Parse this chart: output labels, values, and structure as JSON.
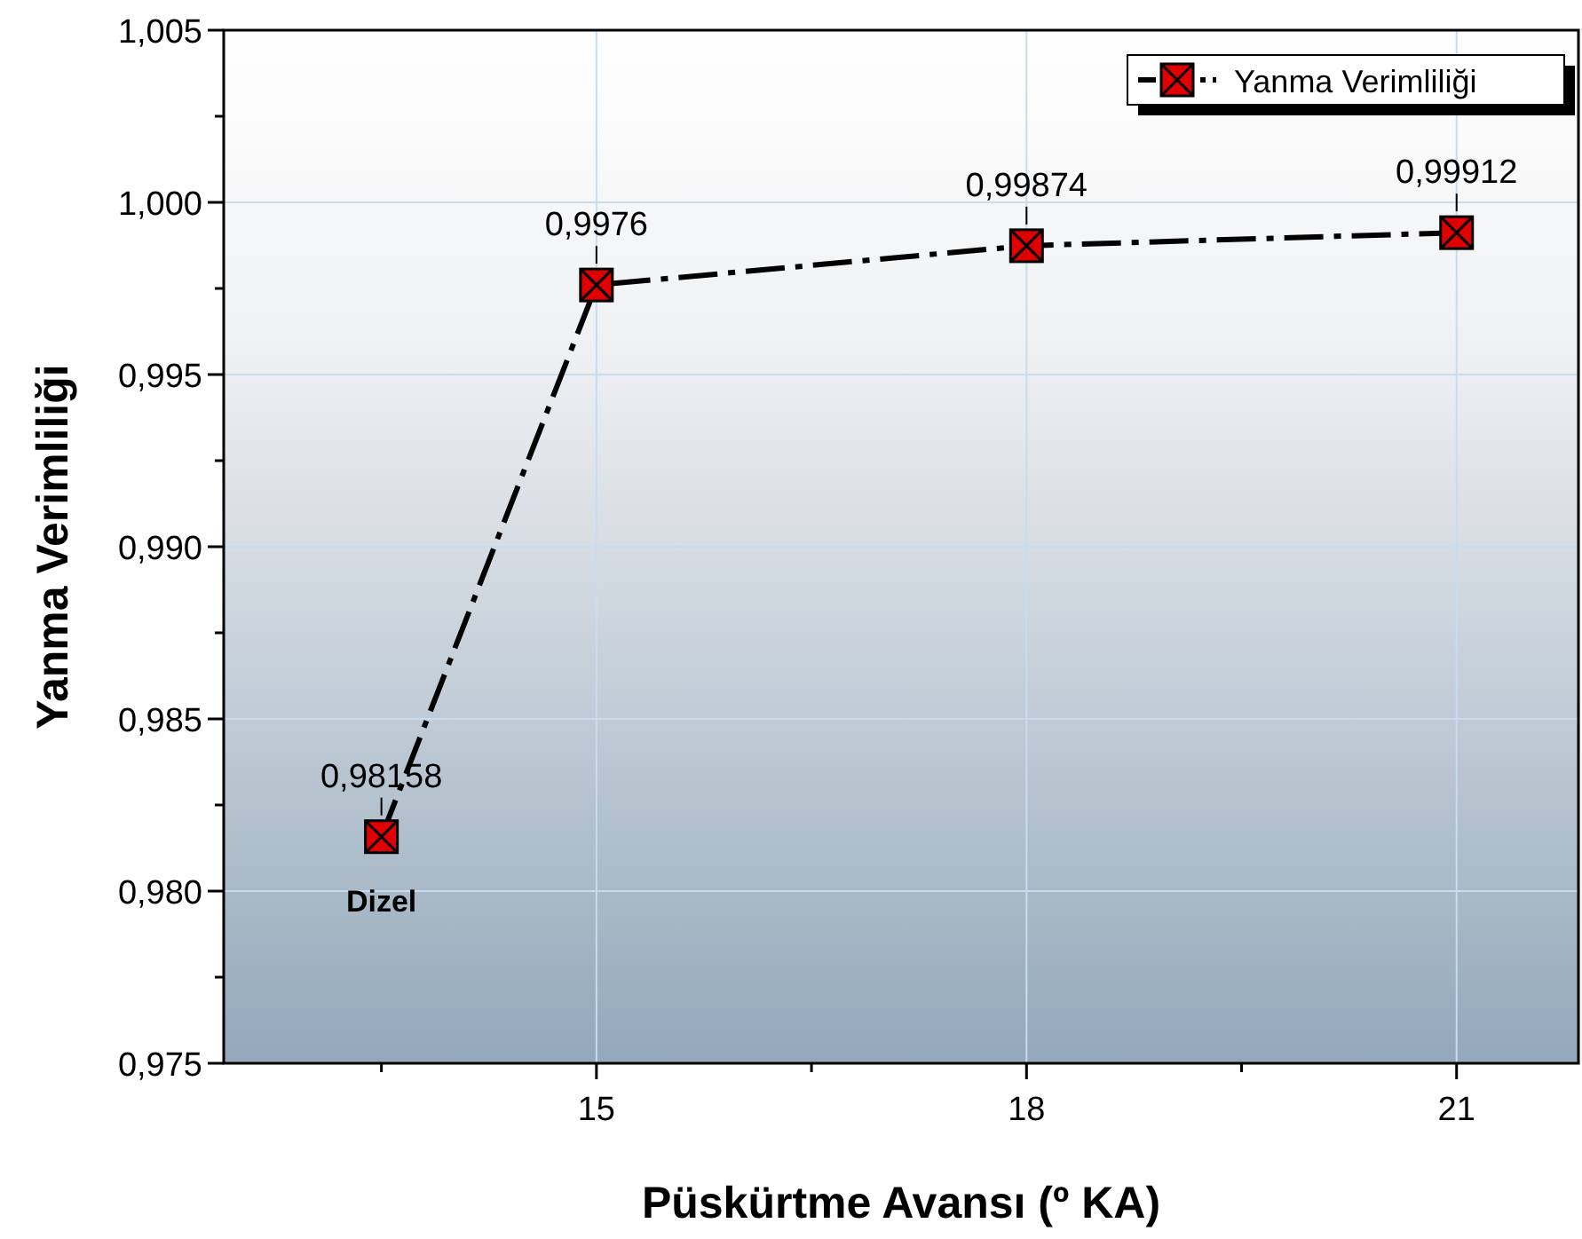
{
  "chart_data": {
    "type": "line",
    "xlabel": "Püskürtme Avansı (º KA)",
    "ylabel": "Yanma Verimliliği",
    "x": [
      13.5,
      15,
      18,
      21
    ],
    "series": [
      {
        "name": "Yanma Verimliliği",
        "color": "#000000",
        "values": [
          0.98158,
          0.9976,
          0.99874,
          0.99912
        ]
      }
    ],
    "xlim": [
      12.4,
      21.85
    ],
    "xticks": [
      {
        "value": 13.5,
        "label": null
      },
      {
        "value": 15,
        "label": "15"
      },
      {
        "value": 16.5,
        "label": null
      },
      {
        "value": 18,
        "label": "18"
      },
      {
        "value": 19.5,
        "label": null
      },
      {
        "value": 21,
        "label": "21"
      }
    ],
    "ylim": [
      0.975,
      1.005
    ],
    "yticks": [
      {
        "value": 0.975,
        "label": "0,975"
      },
      {
        "value": 0.9775,
        "label": null
      },
      {
        "value": 0.98,
        "label": "0,980"
      },
      {
        "value": 0.9825,
        "label": null
      },
      {
        "value": 0.985,
        "label": "0,985"
      },
      {
        "value": 0.9875,
        "label": null
      },
      {
        "value": 0.99,
        "label": "0,990"
      },
      {
        "value": 0.9925,
        "label": null
      },
      {
        "value": 0.995,
        "label": "0,995"
      },
      {
        "value": 0.9975,
        "label": null
      },
      {
        "value": 1.0,
        "label": "1,000"
      },
      {
        "value": 1.0025,
        "label": null
      },
      {
        "value": 1.005,
        "label": "1,005"
      }
    ],
    "value_labels": [
      "0,98158",
      "0,9976",
      "0,99874",
      "0,99912"
    ],
    "annotations": [
      {
        "text": "Dizel",
        "x": 13.5,
        "y": 0.98158
      }
    ],
    "grid": true,
    "legend": "top right",
    "marker": "square",
    "line_style": "dashed"
  }
}
